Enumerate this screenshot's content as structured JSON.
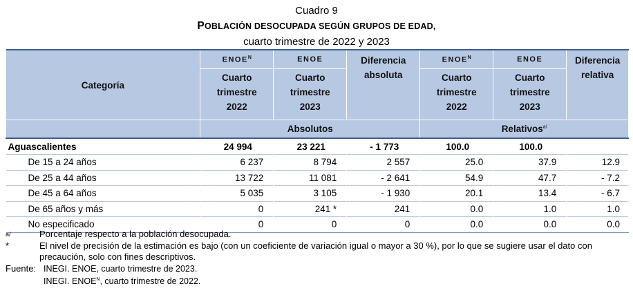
{
  "title": {
    "line1": "Cuadro 9",
    "line2_cap1": "P",
    "line2_rest1": "OBLACIÓN DESOCUPADA SEGÚN GRUPOS DE EDAD,",
    "line3": "cuarto trimestre de 2022 y 2023"
  },
  "header": {
    "categoria": "Categoría",
    "enoe": "ENOE",
    "enoe_sup": "N",
    "periodo_2022": [
      "Cuarto",
      "trimestre",
      "2022"
    ],
    "periodo_2023": [
      "Cuarto",
      "trimestre",
      "2023"
    ],
    "dif_abs": [
      "Diferencia",
      "absoluta"
    ],
    "dif_rel": [
      "Diferencia",
      "relativa"
    ],
    "absolutos": "Absolutos",
    "relativos": "Relativos",
    "relativos_sup": "a/"
  },
  "rows": [
    {
      "label": "Aguascalientes",
      "abs2022": "24 994",
      "abs2023": "23 221",
      "difabs": "- 1 773",
      "rel2022": "100.0",
      "rel2023": "100.0",
      "difrel": ""
    },
    {
      "label": "De 15 a 24 años",
      "abs2022": "6 237",
      "abs2023": "8 794",
      "difabs": "2 557",
      "rel2022": "25.0",
      "rel2023": "37.9",
      "difrel": "12.9"
    },
    {
      "label": "De 25 a 44 años",
      "abs2022": "13 722",
      "abs2023": "11 081",
      "difabs": "- 2 641",
      "rel2022": "54.9",
      "rel2023": "47.7",
      "difrel": "- 7.2"
    },
    {
      "label": "De 45 a 64 años",
      "abs2022": "5 035",
      "abs2023": "3 105",
      "difabs": "- 1 930",
      "rel2022": "20.1",
      "rel2023": "13.4",
      "difrel": "- 6.7"
    },
    {
      "label": "De 65 años y más",
      "abs2022": "0",
      "abs2023": "241 *",
      "difabs": "241",
      "rel2022": "0.0",
      "rel2023": "1.0",
      "difrel": "1.0"
    },
    {
      "label": "No especificado",
      "abs2022": "0",
      "abs2023": "0",
      "difabs": "0",
      "rel2022": "0.0",
      "rel2023": "0.0",
      "difrel": "0.0"
    }
  ],
  "notes": {
    "a_mark": "a/",
    "a_text": "Porcentaje respecto a la población desocupada.",
    "star_mark": "*",
    "star_text": "El nivel de precisión de la estimación es bajo (con un coeficiente de variación igual o mayor a 30 %), por lo que se sugiere usar el dato con precaución, solo con fines descriptivos.",
    "fuente_label": "Fuente:",
    "fuente_1": "INEGI. ENOE, cuarto trimestre de 2023.",
    "fuente_2a": "INEGI. ENOE",
    "fuente_2_sup": "N",
    "fuente_2b": ", cuarto trimestre de 2022."
  }
}
